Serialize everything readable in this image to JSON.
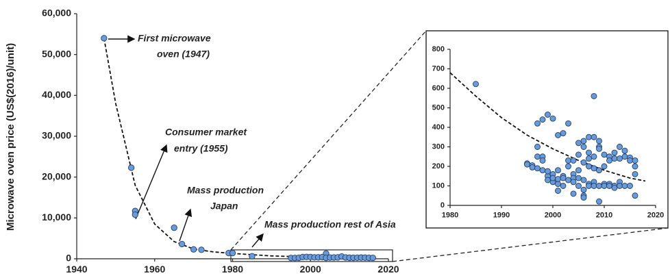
{
  "chart_data": [
    {
      "type": "scatter",
      "ylabel": "Microwave oven price (US$(2016)/unit)",
      "xlim": [
        1940,
        2020
      ],
      "xticks": [
        1940,
        1960,
        1980,
        2000,
        2020
      ],
      "ylim": [
        0,
        60000
      ],
      "yticks": [
        0,
        {
          "value": 10000,
          "label": "10,000"
        },
        {
          "value": 20000,
          "label": "20,000"
        },
        {
          "value": 30000,
          "label": "30,000"
        },
        {
          "value": 40000,
          "label": "40,000"
        },
        {
          "value": 50000,
          "label": "50,000"
        },
        {
          "value": 60000,
          "label": "60,000"
        }
      ],
      "color": "#6a9bd8",
      "annotations": [
        {
          "lines": [
            "First microwave",
            "oven (1947)"
          ]
        },
        {
          "lines": [
            "Consumer market",
            "entry (1955)"
          ]
        },
        {
          "lines": [
            "Mass production",
            "Japan"
          ]
        },
        {
          "lines": [
            "Mass production  rest of Asia"
          ]
        }
      ],
      "x": [
        1947,
        1954,
        1955,
        1955,
        1965,
        1967,
        1970,
        1972,
        1979,
        1980,
        2004,
        1985,
        1995,
        1996,
        1997,
        1998,
        1999,
        2000,
        2001,
        2002,
        2003,
        2004,
        2005,
        2006,
        2007,
        2008,
        2009,
        2010,
        2011,
        2012,
        2013,
        2014,
        2015,
        2016
      ],
      "values": [
        54000,
        22300,
        11700,
        10800,
        7600,
        3600,
        2300,
        2200,
        1400,
        1400,
        1300,
        620,
        215,
        205,
        250,
        440,
        465,
        445,
        360,
        370,
        420,
        230,
        320,
        330,
        350,
        560,
        330,
        260,
        250,
        270,
        300,
        280,
        245,
        230
      ],
      "fit": {
        "x": [
          1947,
          1950,
          1955,
          1960,
          1965,
          1970,
          1975,
          1980,
          1990,
          2000,
          2010,
          2016
        ],
        "values": [
          54000,
          38000,
          18000,
          8500,
          4200,
          2400,
          1700,
          1300,
          700,
          400,
          250,
          200
        ]
      }
    },
    {
      "type": "scatter",
      "xlim": [
        1980,
        2020
      ],
      "xticks": [
        1980,
        1990,
        2000,
        2010,
        2020
      ],
      "ylim": [
        0,
        800
      ],
      "yticks": [
        0,
        100,
        200,
        300,
        400,
        500,
        600,
        700,
        800
      ],
      "color": "#6a9bd8",
      "x": [
        1985,
        1995,
        1995,
        1996,
        1996,
        1997,
        1997,
        1997,
        1997,
        1998,
        1998,
        1998,
        1998,
        1999,
        1999,
        1999,
        1999,
        2000,
        2000,
        2000,
        2000,
        2001,
        2001,
        2001,
        2001,
        2001,
        2002,
        2002,
        2002,
        2002,
        2003,
        2003,
        2003,
        2003,
        2004,
        2004,
        2004,
        2004,
        2004,
        2005,
        2005,
        2005,
        2005,
        2005,
        2006,
        2006,
        2006,
        2006,
        2006,
        2006,
        2006,
        2007,
        2007,
        2007,
        2007,
        2007,
        2007,
        2008,
        2008,
        2008,
        2008,
        2008,
        2008,
        2009,
        2009,
        2009,
        2009,
        2009,
        2009,
        2010,
        2010,
        2010,
        2010,
        2011,
        2011,
        2011,
        2011,
        2012,
        2012,
        2012,
        2012,
        2013,
        2013,
        2013,
        2013,
        2014,
        2014,
        2014,
        2015,
        2015,
        2015,
        2016,
        2016,
        2016,
        2016
      ],
      "values": [
        622,
        215,
        210,
        205,
        195,
        190,
        250,
        420,
        300,
        180,
        440,
        250,
        230,
        465,
        150,
        130,
        175,
        445,
        120,
        160,
        140,
        110,
        75,
        135,
        180,
        360,
        150,
        370,
        140,
        100,
        420,
        130,
        200,
        230,
        230,
        160,
        140,
        120,
        60,
        320,
        260,
        180,
        140,
        100,
        330,
        300,
        220,
        130,
        80,
        50,
        40,
        350,
        270,
        240,
        200,
        110,
        100,
        560,
        350,
        250,
        190,
        120,
        100,
        330,
        300,
        290,
        180,
        100,
        20,
        260,
        200,
        110,
        100,
        250,
        230,
        110,
        100,
        270,
        240,
        100,
        90,
        300,
        240,
        120,
        100,
        280,
        250,
        100,
        245,
        230,
        100,
        230,
        200,
        160,
        50
      ],
      "fit": {
        "x": [
          1980,
          1985,
          1990,
          1995,
          2000,
          2005,
          2010,
          2015,
          2018
        ],
        "values": [
          680,
          560,
          450,
          360,
          290,
          230,
          180,
          140,
          125
        ]
      }
    }
  ]
}
